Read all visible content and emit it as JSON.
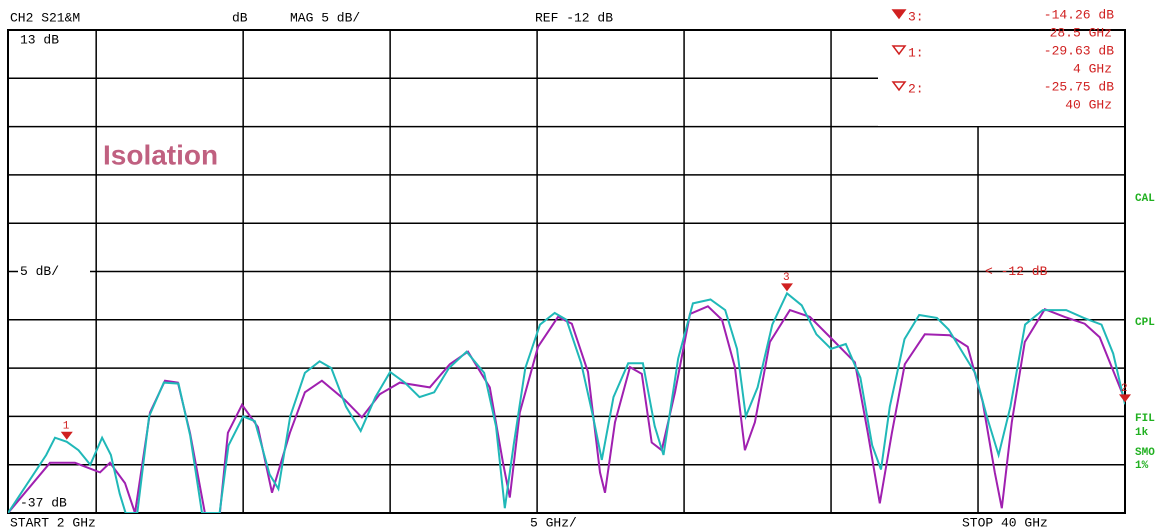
{
  "chart_data": {
    "type": "line",
    "title": "CH2 S21&M",
    "format": "dB",
    "scale": "MAG 5 dB/",
    "reference": "REF -12 dB",
    "top_label": "13 dB",
    "scale_label": "5 dB/",
    "bottom_label": "-37 dB",
    "start": "START 2 GHz",
    "span": "5 GHz/",
    "stop": "STOP 40 GHz",
    "annotation": "Isolation",
    "ref_marker_label": "< -12 dB",
    "side_labels": [
      "CAL",
      "CPL",
      "FIL",
      "1k",
      "SMO",
      "1%"
    ],
    "xlim": [
      2,
      40
    ],
    "ylim": [
      -37,
      13
    ],
    "xticks": [
      5,
      10,
      15,
      20,
      25,
      30,
      35
    ],
    "yticks": [
      -37,
      -32,
      -27,
      -22,
      -17,
      -12,
      -7,
      -2,
      3,
      8,
      13
    ],
    "grid": true,
    "series": [
      {
        "color": "#a020b0",
        "x": [
          2.0,
          3.43,
          4.28,
          5.13,
          5.47,
          5.98,
          6.32,
          6.83,
          7.34,
          7.78,
          8.19,
          8.7,
          9.21,
          9.48,
          9.96,
          10.5,
          10.98,
          11.59,
          12.1,
          12.68,
          13.46,
          14.04,
          14.65,
          15.33,
          16.35,
          17.03,
          17.65,
          18.39,
          18.84,
          19.07,
          19.41,
          20.03,
          20.71,
          21.18,
          21.73,
          22.14,
          22.31,
          22.65,
          23.16,
          23.56,
          23.9,
          24.24,
          24.69,
          25.2,
          25.81,
          26.29,
          26.73,
          27.07,
          27.41,
          27.92,
          28.6,
          29.28,
          30.13,
          30.81,
          31.25,
          31.66,
          32.07,
          32.51,
          33.19,
          34.04,
          34.65,
          35.16,
          35.57,
          35.81,
          36.15,
          36.59,
          37.27,
          37.95,
          38.63,
          39.14,
          40.0
        ],
        "values": [
          -37,
          -31.8,
          -31.8,
          -32.8,
          -31.8,
          -33.9,
          -37,
          -26.6,
          -23.3,
          -23.5,
          -28.7,
          -37,
          -37,
          -28.7,
          -25.8,
          -28.1,
          -34.9,
          -28.7,
          -24.5,
          -23.3,
          -25.3,
          -27.1,
          -24.7,
          -23.5,
          -24.0,
          -21.6,
          -20.3,
          -24.0,
          -31.8,
          -35.4,
          -26.6,
          -19.8,
          -16.7,
          -17.4,
          -22.4,
          -32.8,
          -34.9,
          -27.6,
          -21.9,
          -22.6,
          -29.7,
          -30.5,
          -24.5,
          -16.4,
          -15.6,
          -17.0,
          -21.9,
          -30.5,
          -27.6,
          -19.3,
          -16.0,
          -16.7,
          -19.3,
          -21.4,
          -28.7,
          -36.0,
          -28.7,
          -21.6,
          -18.5,
          -18.6,
          -19.8,
          -25.5,
          -32.8,
          -36.5,
          -27.6,
          -19.3,
          -15.9,
          -16.7,
          -17.4,
          -18.8,
          -25.3
        ]
      },
      {
        "color": "#20b8b8",
        "x": [
          2.0,
          3.3,
          3.6,
          4.0,
          4.4,
          4.8,
          5.2,
          5.5,
          5.8,
          6.0,
          6.4,
          6.8,
          7.3,
          7.8,
          8.2,
          8.6,
          9.2,
          9.5,
          10.0,
          10.4,
          10.9,
          11.2,
          11.6,
          12.1,
          12.6,
          13.0,
          13.5,
          14.0,
          14.5,
          15.0,
          15.5,
          16.0,
          16.5,
          17.0,
          17.6,
          18.2,
          18.6,
          18.9,
          19.2,
          19.6,
          20.1,
          20.6,
          21.0,
          21.5,
          21.9,
          22.2,
          22.6,
          23.1,
          23.6,
          24.0,
          24.3,
          24.8,
          25.3,
          25.9,
          26.4,
          26.8,
          27.1,
          27.5,
          28.0,
          28.5,
          29.0,
          29.5,
          30.0,
          30.5,
          31.0,
          31.4,
          31.7,
          32.0,
          32.5,
          33.0,
          33.6,
          34.0,
          34.5,
          34.9,
          35.3,
          35.7,
          36.1,
          36.6,
          37.2,
          38.0,
          38.6,
          39.2,
          39.6,
          40.0
        ],
        "values": [
          -37,
          -31,
          -29.2,
          -29.63,
          -30.5,
          -32,
          -29.2,
          -31,
          -35,
          -37,
          -37,
          -27,
          -23.5,
          -23.6,
          -29,
          -37,
          -37,
          -30,
          -27,
          -27.5,
          -33,
          -34.5,
          -27,
          -22.5,
          -21.3,
          -22,
          -26,
          -28.5,
          -25,
          -22.4,
          -23.5,
          -25,
          -24.5,
          -22,
          -20.3,
          -22.5,
          -28,
          -36.5,
          -30,
          -22,
          -17.5,
          -16.3,
          -17,
          -21.5,
          -27,
          -31.5,
          -25,
          -21.5,
          -21.5,
          -28,
          -31,
          -21,
          -15.3,
          -14.9,
          -16,
          -20,
          -27,
          -24,
          -17.5,
          -14.26,
          -15.5,
          -18.5,
          -20,
          -19.5,
          -23,
          -30,
          -32.5,
          -26,
          -19,
          -16.5,
          -16.8,
          -18,
          -20.5,
          -22.5,
          -27,
          -31,
          -26,
          -17.5,
          -16,
          -16,
          -16.8,
          -17.5,
          -20.5,
          -25.75
        ]
      }
    ],
    "markers": [
      {
        "id": "3",
        "list_label": "3:",
        "x": 28.5,
        "x_label": "28.5 GHz",
        "value": -14.26,
        "value_label": "-14.26 dB"
      },
      {
        "id": "1",
        "list_label": "1:",
        "x": 4,
        "x_label": "4 GHz",
        "value": -29.63,
        "value_label": "-29.63 dB"
      },
      {
        "id": "2",
        "list_label": "2:",
        "x": 40,
        "x_label": "40 GHz",
        "value": -25.75,
        "value_label": "-25.75 dB"
      }
    ]
  }
}
